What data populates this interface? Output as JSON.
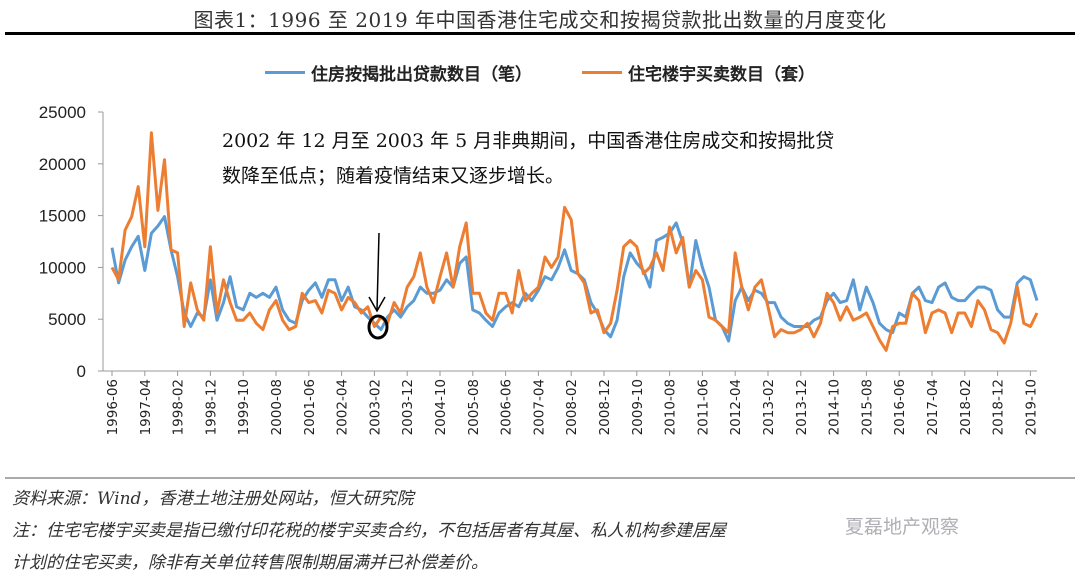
{
  "title": "图表1：1996 至 2019 年中国香港住宅成交和按揭贷款批出数量的月度变化",
  "annotation": {
    "line1": "2002 年 12 月至 2003 年 5 月非典期间，中国香港住房成交和按揭批贷",
    "line2": "数降至低点；随着疫情结束又逐步增长。"
  },
  "footer": {
    "source": "资料来源：Wind，香港土地注册处网站，恒大研究院",
    "note1": "注：住宅宅楼宇买卖是指已缴付印花税的楼宇买卖合约，不包括居者有其屋、私人机构参建居屋",
    "note2": "计划的住宅买卖，除非有关单位转售限制期届满并已补偿差价。",
    "watermark": "夏磊地产观察"
  },
  "chart_data": {
    "type": "line",
    "title": "",
    "xlabel": "",
    "ylabel": "",
    "ylim": [
      0,
      25000
    ],
    "yticks": [
      "0",
      "5000",
      "10000",
      "15000",
      "20000",
      "25000"
    ],
    "xtick_labels": [
      "1996-06",
      "1997-04",
      "1998-02",
      "1998-12",
      "1999-10",
      "2000-08",
      "2001-06",
      "2002-04",
      "2003-02",
      "2003-12",
      "2004-10",
      "2005-08",
      "2006-06",
      "2007-04",
      "2008-02",
      "2008-12",
      "2009-10",
      "2010-08",
      "2011-06",
      "2012-04",
      "2013-02",
      "2013-12",
      "2014-10",
      "2015-08",
      "2016-06",
      "2017-04",
      "2018-02",
      "2018-12",
      "2019-10"
    ],
    "grid": false,
    "legend": "top",
    "x": [
      "1996-06",
      "1996-08",
      "1996-10",
      "1996-12",
      "1997-02",
      "1997-04",
      "1997-06",
      "1997-08",
      "1997-10",
      "1997-12",
      "1998-02",
      "1998-04",
      "1998-06",
      "1998-08",
      "1998-10",
      "1998-12",
      "1999-02",
      "1999-04",
      "1999-06",
      "1999-08",
      "1999-10",
      "1999-12",
      "2000-02",
      "2000-04",
      "2000-06",
      "2000-08",
      "2000-10",
      "2000-12",
      "2001-02",
      "2001-04",
      "2001-06",
      "2001-08",
      "2001-10",
      "2001-12",
      "2002-02",
      "2002-04",
      "2002-06",
      "2002-08",
      "2002-10",
      "2002-12",
      "2003-02",
      "2003-04",
      "2003-06",
      "2003-08",
      "2003-10",
      "2003-12",
      "2004-02",
      "2004-04",
      "2004-06",
      "2004-08",
      "2004-10",
      "2004-12",
      "2005-02",
      "2005-04",
      "2005-06",
      "2005-08",
      "2005-10",
      "2005-12",
      "2006-02",
      "2006-04",
      "2006-06",
      "2006-08",
      "2006-10",
      "2006-12",
      "2007-02",
      "2007-04",
      "2007-06",
      "2007-08",
      "2007-10",
      "2007-12",
      "2008-02",
      "2008-04",
      "2008-06",
      "2008-08",
      "2008-10",
      "2008-12",
      "2009-02",
      "2009-04",
      "2009-06",
      "2009-08",
      "2009-10",
      "2009-12",
      "2010-02",
      "2010-04",
      "2010-06",
      "2010-08",
      "2010-10",
      "2010-12",
      "2011-02",
      "2011-04",
      "2011-06",
      "2011-08",
      "2011-10",
      "2011-12",
      "2012-02",
      "2012-04",
      "2012-06",
      "2012-08",
      "2012-10",
      "2012-12",
      "2013-02",
      "2013-04",
      "2013-06",
      "2013-08",
      "2013-10",
      "2013-12",
      "2014-02",
      "2014-04",
      "2014-06",
      "2014-08",
      "2014-10",
      "2014-12",
      "2015-02",
      "2015-04",
      "2015-06",
      "2015-08",
      "2015-10",
      "2015-12",
      "2016-02",
      "2016-04",
      "2016-06",
      "2016-08",
      "2016-10",
      "2016-12",
      "2017-02",
      "2017-04",
      "2017-06",
      "2017-08",
      "2017-10",
      "2017-12",
      "2018-02",
      "2018-04",
      "2018-06",
      "2018-08",
      "2018-10",
      "2018-12",
      "2019-02",
      "2019-04",
      "2019-06",
      "2019-08",
      "2019-10",
      "2019-12"
    ],
    "series": [
      {
        "name": "住房按揭批出贷款数目（笔）",
        "color": "#5B9BD5",
        "values": [
          11900,
          8500,
          10700,
          12000,
          13000,
          9700,
          13300,
          14000,
          14900,
          11700,
          9100,
          5600,
          4300,
          5600,
          5200,
          8800,
          4900,
          6600,
          9100,
          6200,
          5900,
          7500,
          7100,
          7500,
          7100,
          8100,
          5900,
          4900,
          4600,
          6800,
          7800,
          8500,
          7100,
          8800,
          8800,
          6800,
          8100,
          6200,
          5900,
          5200,
          4600,
          4000,
          5200,
          5900,
          5200,
          6200,
          6800,
          8100,
          7500,
          7500,
          7800,
          8800,
          8100,
          10400,
          11000,
          5900,
          5600,
          4900,
          4300,
          5600,
          6200,
          6600,
          6200,
          7500,
          6800,
          7800,
          9100,
          8800,
          10000,
          11700,
          9700,
          9400,
          8800,
          6600,
          5600,
          4000,
          3300,
          4900,
          9100,
          11400,
          10400,
          9700,
          8100,
          12600,
          12900,
          13300,
          14300,
          12400,
          8100,
          12600,
          10000,
          8100,
          4900,
          4300,
          2900,
          6800,
          8100,
          6800,
          7800,
          7500,
          6600,
          6600,
          5200,
          4600,
          4300,
          4300,
          4300,
          4900,
          5200,
          6800,
          7500,
          6600,
          6800,
          8800,
          5900,
          8100,
          6600,
          4600,
          4000,
          3700,
          5600,
          5200,
          7500,
          8100,
          6800,
          6600,
          8100,
          8500,
          7100,
          6800,
          6800,
          7500,
          8100,
          8100,
          7800,
          5900,
          5200,
          5200,
          8500,
          9100,
          8800,
          6800
        ]
      },
      {
        "name": "住宅楼宇买卖数目（套）",
        "color": "#ED7D31",
        "values": [
          10000,
          8800,
          13600,
          14900,
          17800,
          12000,
          23000,
          15500,
          20400,
          11700,
          11400,
          4300,
          8500,
          5900,
          4900,
          12000,
          5600,
          8800,
          6600,
          4900,
          4900,
          5600,
          4600,
          4000,
          5900,
          6800,
          4900,
          4000,
          4300,
          7500,
          6600,
          6800,
          5600,
          7800,
          7500,
          5900,
          7100,
          6600,
          5600,
          6200,
          4300,
          5200,
          4600,
          6600,
          5600,
          8100,
          9100,
          11400,
          8100,
          6600,
          9100,
          11400,
          8100,
          12000,
          14300,
          7500,
          7500,
          5600,
          4900,
          7500,
          7500,
          5600,
          9700,
          6800,
          7500,
          8100,
          11000,
          10000,
          11000,
          15800,
          14600,
          9400,
          8500,
          5600,
          5900,
          3700,
          4600,
          7800,
          12000,
          12600,
          12000,
          9400,
          10000,
          11400,
          9700,
          13900,
          11400,
          12900,
          8100,
          9700,
          8800,
          5200,
          4900,
          4300,
          3700,
          11400,
          8100,
          5900,
          8100,
          8800,
          6200,
          3300,
          4000,
          3700,
          3700,
          4000,
          4600,
          3300,
          4600,
          7500,
          6600,
          4900,
          6200,
          4900,
          5200,
          5600,
          4300,
          3000,
          2000,
          4300,
          4600,
          4600,
          7500,
          6800,
          3700,
          5600,
          5900,
          5600,
          3700,
          5600,
          5600,
          4300,
          6800,
          5900,
          4000,
          3700,
          2700,
          4600,
          8100,
          4600,
          4300,
          5600
        ]
      }
    ]
  }
}
